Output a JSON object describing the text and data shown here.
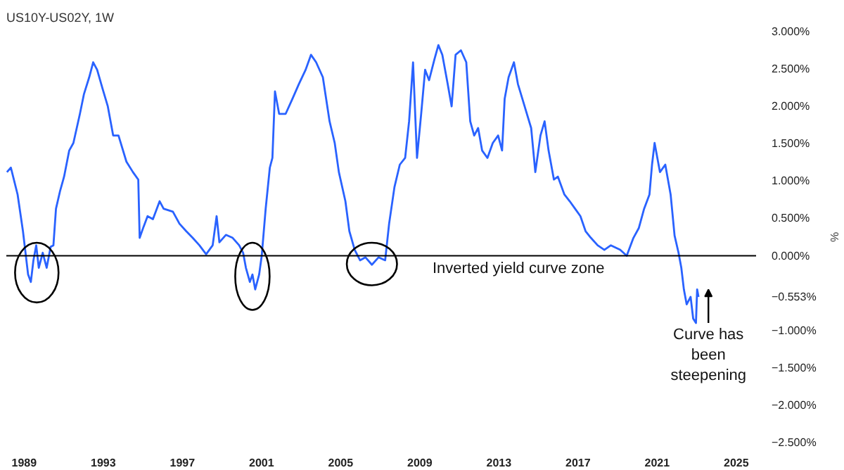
{
  "chart_data": {
    "type": "line",
    "title": "US10Y-US02Y, 1W",
    "ylabel": "%",
    "x": [
      1988.13,
      1988.33,
      1988.67,
      1988.94,
      1989.2,
      1989.34,
      1989.47,
      1989.61,
      1989.74,
      1989.94,
      1990.14,
      1990.34,
      1990.48,
      1990.61,
      1990.81,
      1991.02,
      1991.28,
      1991.49,
      1991.82,
      1992.02,
      1992.29,
      1992.49,
      1992.69,
      1992.96,
      1993.23,
      1993.5,
      1993.77,
      1994.17,
      1994.5,
      1994.77,
      1994.84,
      1995.04,
      1995.24,
      1995.51,
      1995.85,
      1996.05,
      1996.52,
      1996.85,
      1997.19,
      1997.52,
      1997.86,
      1998.2,
      1998.53,
      1998.73,
      1998.87,
      1999.2,
      1999.54,
      1999.87,
      2000.07,
      2000.21,
      2000.41,
      2000.54,
      2000.68,
      2000.88,
      2001.01,
      2001.21,
      2001.42,
      2001.55,
      2001.68,
      2001.89,
      2002.22,
      2002.56,
      2002.89,
      2003.23,
      2003.5,
      2003.76,
      2004.1,
      2004.44,
      2004.7,
      2004.91,
      2005.24,
      2005.44,
      2005.71,
      2005.98,
      2006.25,
      2006.58,
      2006.92,
      2007.25,
      2007.45,
      2007.72,
      2007.99,
      2008.26,
      2008.46,
      2008.66,
      2008.86,
      2009.07,
      2009.27,
      2009.47,
      2009.74,
      2009.94,
      2010.14,
      2010.41,
      2010.61,
      2010.81,
      2011.08,
      2011.35,
      2011.55,
      2011.75,
      2011.95,
      2012.15,
      2012.42,
      2012.69,
      2012.96,
      2013.16,
      2013.29,
      2013.49,
      2013.76,
      2013.96,
      2014.3,
      2014.63,
      2014.84,
      2015.1,
      2015.31,
      2015.51,
      2015.78,
      2015.98,
      2016.31,
      2016.58,
      2016.85,
      2017.12,
      2017.38,
      2017.65,
      2017.99,
      2018.33,
      2018.66,
      2019.13,
      2019.46,
      2019.8,
      2020.07,
      2020.34,
      2020.61,
      2020.74,
      2020.87,
      2021.14,
      2021.41,
      2021.68,
      2021.88,
      2022.08,
      2022.22,
      2022.35,
      2022.49,
      2022.69,
      2022.82,
      2022.96,
      2023.02,
      2023.09
    ],
    "series": [
      {
        "color": "#2962ff",
        "values": [
          1.12,
          1.18,
          0.82,
          0.33,
          -0.25,
          -0.35,
          -0.06,
          0.14,
          -0.16,
          0.04,
          -0.16,
          0.12,
          0.14,
          0.63,
          0.86,
          1.06,
          1.41,
          1.51,
          1.9,
          2.16,
          2.39,
          2.59,
          2.49,
          2.24,
          2.0,
          1.61,
          1.61,
          1.26,
          1.12,
          1.02,
          0.24,
          0.39,
          0.53,
          0.49,
          0.73,
          0.63,
          0.59,
          0.43,
          0.33,
          0.24,
          0.14,
          0.02,
          0.14,
          0.53,
          0.18,
          0.28,
          0.24,
          0.14,
          0.04,
          -0.16,
          -0.35,
          -0.25,
          -0.45,
          -0.25,
          0.0,
          0.63,
          1.18,
          1.31,
          2.2,
          1.9,
          1.9,
          2.1,
          2.3,
          2.49,
          2.69,
          2.59,
          2.39,
          1.8,
          1.51,
          1.12,
          0.73,
          0.33,
          0.08,
          -0.06,
          -0.02,
          -0.12,
          -0.02,
          -0.06,
          0.43,
          0.92,
          1.22,
          1.31,
          1.8,
          2.59,
          1.31,
          1.9,
          2.49,
          2.35,
          2.63,
          2.82,
          2.69,
          2.3,
          2.0,
          2.69,
          2.75,
          2.59,
          1.8,
          1.61,
          1.71,
          1.41,
          1.31,
          1.51,
          1.61,
          1.41,
          2.1,
          2.39,
          2.59,
          2.3,
          2.0,
          1.71,
          1.12,
          1.61,
          1.8,
          1.41,
          1.02,
          1.06,
          0.82,
          0.73,
          0.63,
          0.53,
          0.33,
          0.24,
          0.14,
          0.08,
          0.14,
          0.08,
          0.0,
          0.24,
          0.37,
          0.63,
          0.82,
          1.22,
          1.51,
          1.12,
          1.22,
          0.82,
          0.27,
          0.04,
          -0.16,
          -0.45,
          -0.65,
          -0.55,
          -0.84,
          -0.9,
          -0.45,
          -0.55
        ]
      }
    ],
    "xlim": [
      1988.1,
      2026.0
    ],
    "ylim": [
      -2.5,
      3
    ],
    "xticks": [
      1989,
      1993,
      1997,
      2001,
      2005,
      2009,
      2013,
      2017,
      2021,
      2025
    ],
    "yticks": [
      {
        "value": 3,
        "label": "3.000%"
      },
      {
        "value": 2.5,
        "label": "2.500%"
      },
      {
        "value": 2,
        "label": "2.000%"
      },
      {
        "value": 1.5,
        "label": "1.500%"
      },
      {
        "value": 1,
        "label": "1.000%"
      },
      {
        "value": 0.5,
        "label": "0.500%"
      },
      {
        "value": 0,
        "label": "0.000%"
      },
      {
        "value": -0.553,
        "label": "−0.553%"
      },
      {
        "value": -1,
        "label": "−1.000%"
      },
      {
        "value": -1.5,
        "label": "−1.500%"
      },
      {
        "value": -2,
        "label": "−2.000%"
      },
      {
        "value": -2.5,
        "label": "−2.500%"
      }
    ],
    "ref_lines": [
      {
        "axis": "y",
        "value": 0,
        "color": "#000000"
      }
    ],
    "annotations": [
      "Inverted yield curve zone",
      "Curve has\nbeen\nsteepening"
    ],
    "grid": false,
    "marker": "none",
    "line_style": "solid"
  }
}
